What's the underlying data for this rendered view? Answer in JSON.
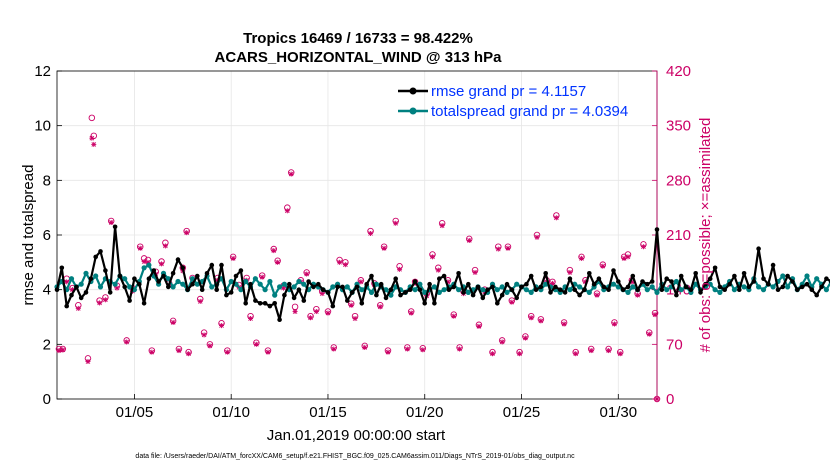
{
  "chart_data": {
    "type": "line",
    "title": [
      "Tropics 16469 / 16733 = 98.422%",
      "ACARS_HORIZONTAL_WIND @ 313 hPa"
    ],
    "xlabel": "Jan.01,2019 00:00:00 start",
    "ylabel": "rmse and totalspread",
    "ylabel_right": "# of obs: o=possible; ×=assimilated",
    "xlim": [
      1,
      32
    ],
    "ylim": [
      0,
      12
    ],
    "ylim_right": [
      0,
      420
    ],
    "x_ticks": [
      5,
      10,
      15,
      20,
      25,
      30
    ],
    "x_tick_labels": [
      "01/05",
      "01/10",
      "01/15",
      "01/20",
      "01/25",
      "01/30"
    ],
    "y_ticks": [
      "0",
      "2",
      "4",
      "6",
      "8",
      "10",
      "12"
    ],
    "y_right_ticks": [
      "0",
      "70",
      "140",
      "210",
      "280",
      "350",
      "420"
    ],
    "legend": [
      "rmse grand pr = 4.1157",
      "totalspread grand pr = 4.0394"
    ],
    "footer": "data file: /Users/raeder/DAI/ATM_forcXX/CAM6_setup/f.e21.FHIST_BGC.f09_025.CAM6assim.011/Diags_NTrS_2019-01/obs_diag_output.nc",
    "colors": {
      "rmse": "#000000",
      "spread": "#008080",
      "obs": "#cc0066",
      "legend_text": "#0033ff"
    },
    "series": [
      {
        "name": "rmse",
        "x_start": 1.0,
        "x_step": 0.25,
        "values": [
          4.0,
          4.8,
          3.4,
          3.8,
          4.1,
          3.7,
          3.9,
          4.4,
          5.2,
          5.4,
          4.7,
          3.9,
          6.3,
          4.5,
          4.1,
          3.6,
          4.4,
          4.2,
          3.5,
          4.4,
          4.7,
          4.3,
          4.5,
          4.1,
          4.6,
          5.1,
          4.8,
          4.0,
          4.2,
          4.5,
          4.0,
          4.6,
          4.9,
          4.0,
          4.9,
          3.8,
          3.9,
          4.5,
          4.7,
          3.5,
          4.2,
          3.6,
          3.5,
          3.5,
          3.4,
          3.5,
          2.9,
          3.8,
          4.2,
          3.7,
          4.0,
          3.6,
          4.3,
          4.1,
          4.2,
          4.0,
          3.9,
          3.4,
          4.1,
          4.1,
          3.6,
          3.9,
          4.1,
          3.5,
          4.2,
          4.5,
          3.8,
          4.2,
          3.7,
          4.0,
          4.4,
          3.8,
          3.9,
          4.0,
          4.3,
          4.0,
          3.5,
          4.2,
          3.5,
          4.4,
          4.5,
          4.0,
          4.1,
          4.6,
          3.9,
          4.2,
          3.8,
          4.1,
          3.7,
          4.0,
          4.1,
          3.5,
          3.8,
          4.2,
          4.0,
          3.7,
          4.1,
          4.2,
          4.5,
          4.0,
          4.1,
          4.6,
          3.9,
          4.1,
          4.0,
          3.9,
          4.4,
          4.0,
          3.8,
          4.0,
          4.6,
          4.2,
          4.4,
          4.1,
          4.0,
          4.7,
          4.3,
          4.0,
          4.1,
          4.5,
          4.0,
          4.3,
          4.2,
          4.3,
          6.2,
          4.0,
          4.4,
          4.3,
          3.8,
          4.5,
          4.1,
          4.0,
          4.6,
          3.9,
          4.2,
          4.4,
          4.8,
          4.1,
          4.0,
          4.2,
          4.5,
          4.0,
          4.6,
          4.1,
          4.3,
          5.5,
          4.4,
          4.2,
          4.9,
          4.0,
          4.1,
          4.5,
          4.3,
          4.0,
          4.1,
          4.2,
          4.0,
          3.8,
          4.1,
          4.4,
          4.3,
          4.6,
          4.1,
          4.5,
          4.2,
          4.0,
          4.7,
          4.3,
          4.9,
          4.1,
          3.8,
          4.2,
          4.0,
          4.3,
          4.5,
          4.8,
          4.2,
          4.1,
          4.4,
          3.9,
          4.5,
          4.0,
          4.3,
          4.1,
          4.6,
          4.2,
          4.3,
          4.1,
          4.8,
          4.2,
          4.1,
          4.5,
          4.3,
          5.0,
          4.4,
          4.1,
          4.2,
          5.4,
          4.9,
          4.2,
          4.4,
          4.0,
          3.9,
          4.2,
          4.0,
          4.1
        ]
      },
      {
        "name": "totalspread",
        "x_start": 1.0,
        "x_step": 0.25,
        "values": [
          4.1,
          4.3,
          4.0,
          4.4,
          4.1,
          4.2,
          4.6,
          4.3,
          4.5,
          4.1,
          4.4,
          4.3,
          4.2,
          4.5,
          4.4,
          4.1,
          4.0,
          4.3,
          4.8,
          4.9,
          4.5,
          4.2,
          4.6,
          4.4,
          4.1,
          4.3,
          4.2,
          4.0,
          4.4,
          4.2,
          4.3,
          4.5,
          4.1,
          4.2,
          4.4,
          4.0,
          4.3,
          4.2,
          4.0,
          4.3,
          4.1,
          4.4,
          4.2,
          4.0,
          4.3,
          3.8,
          4.1,
          4.2,
          4.0,
          4.1,
          4.3,
          4.2,
          4.0,
          4.2,
          4.1,
          4.0,
          3.9,
          4.1,
          4.2,
          4.0,
          4.1,
          3.9,
          4.2,
          4.0,
          4.1,
          3.9,
          4.2,
          4.1,
          4.0,
          3.8,
          4.1,
          4.0,
          3.9,
          4.1,
          4.0,
          4.2,
          3.9,
          4.0,
          4.1,
          3.9,
          4.0,
          4.1,
          4.2,
          4.0,
          4.1,
          3.9,
          4.0,
          4.1,
          4.0,
          3.9,
          4.2,
          4.0,
          4.1,
          3.9,
          4.0,
          4.2,
          4.1,
          4.0,
          3.9,
          4.1,
          4.0,
          4.2,
          4.1,
          4.0,
          3.9,
          4.1,
          4.0,
          4.2,
          4.1,
          4.0,
          3.9,
          4.1,
          4.3,
          4.0,
          4.1,
          4.2,
          4.1,
          4.0,
          3.9,
          4.1,
          4.0,
          4.2,
          4.0,
          4.1,
          3.9,
          4.2,
          4.0,
          4.1,
          4.3,
          4.0,
          4.1,
          3.9,
          4.2,
          4.0,
          4.1,
          4.2,
          4.0,
          3.9,
          4.1,
          4.3,
          4.0,
          4.2,
          4.1,
          4.0,
          4.4,
          4.1,
          4.0,
          4.2,
          4.1,
          4.3,
          4.5,
          4.1,
          4.4,
          4.0,
          4.2,
          4.5,
          4.1,
          4.4,
          4.2,
          4.0,
          4.3,
          4.5,
          4.6,
          4.2,
          4.4,
          4.1,
          4.3,
          4.0,
          4.2,
          4.4,
          4.1,
          4.3,
          4.5,
          4.2,
          4.6,
          4.4,
          4.2,
          4.3,
          4.1,
          4.4,
          4.3,
          4.2,
          4.5,
          4.2,
          4.1,
          4.3,
          4.4,
          4.2,
          4.5,
          4.1,
          4.3,
          4.2,
          4.4,
          4.1,
          4.5,
          4.3,
          4.7,
          4.4,
          4.2,
          4.6,
          4.9,
          4.5,
          4.3
        ]
      }
    ],
    "obs_possible": [
      [
        1.1,
        64
      ],
      [
        1.3,
        64
      ],
      [
        1.5,
        154
      ],
      [
        1.8,
        142
      ],
      [
        2.1,
        120
      ],
      [
        2.6,
        52
      ],
      [
        2.8,
        360
      ],
      [
        2.9,
        337
      ],
      [
        3.2,
        126
      ],
      [
        3.5,
        130
      ],
      [
        3.8,
        228
      ],
      [
        4.1,
        145
      ],
      [
        4.6,
        75
      ],
      [
        4.9,
        142
      ],
      [
        5.3,
        195
      ],
      [
        5.5,
        180
      ],
      [
        5.7,
        178
      ],
      [
        5.9,
        62
      ],
      [
        6.1,
        163
      ],
      [
        6.4,
        176
      ],
      [
        6.6,
        200
      ],
      [
        6.8,
        148
      ],
      [
        7.0,
        100
      ],
      [
        7.3,
        64
      ],
      [
        7.5,
        168
      ],
      [
        7.7,
        215
      ],
      [
        7.8,
        60
      ],
      [
        8.0,
        155
      ],
      [
        8.4,
        128
      ],
      [
        8.6,
        85
      ],
      [
        8.9,
        70
      ],
      [
        9.3,
        155
      ],
      [
        9.5,
        97
      ],
      [
        9.8,
        62
      ],
      [
        10.1,
        182
      ],
      [
        10.4,
        146
      ],
      [
        10.8,
        155
      ],
      [
        11.0,
        106
      ],
      [
        11.3,
        72
      ],
      [
        11.6,
        158
      ],
      [
        11.9,
        62
      ],
      [
        12.2,
        192
      ],
      [
        12.4,
        177
      ],
      [
        12.7,
        145
      ],
      [
        12.9,
        245
      ],
      [
        13.1,
        290
      ],
      [
        13.3,
        118
      ],
      [
        13.6,
        152
      ],
      [
        13.9,
        162
      ],
      [
        14.1,
        106
      ],
      [
        14.4,
        115
      ],
      [
        14.7,
        138
      ],
      [
        15.0,
        112
      ],
      [
        15.3,
        66
      ],
      [
        15.6,
        178
      ],
      [
        15.9,
        175
      ],
      [
        16.2,
        122
      ],
      [
        16.4,
        106
      ],
      [
        16.7,
        152
      ],
      [
        16.9,
        68
      ],
      [
        17.2,
        215
      ],
      [
        17.4,
        148
      ],
      [
        17.7,
        120
      ],
      [
        17.9,
        195
      ],
      [
        18.1,
        62
      ],
      [
        18.5,
        228
      ],
      [
        18.7,
        170
      ],
      [
        19.1,
        66
      ],
      [
        19.3,
        112
      ],
      [
        19.5,
        150
      ],
      [
        19.9,
        65
      ],
      [
        20.1,
        135
      ],
      [
        20.4,
        185
      ],
      [
        20.7,
        168
      ],
      [
        20.9,
        225
      ],
      [
        21.2,
        152
      ],
      [
        21.5,
        108
      ],
      [
        21.8,
        66
      ],
      [
        22.0,
        138
      ],
      [
        22.3,
        205
      ],
      [
        22.6,
        165
      ],
      [
        22.8,
        95
      ],
      [
        23.1,
        140
      ],
      [
        23.5,
        60
      ],
      [
        23.8,
        195
      ],
      [
        24.0,
        75
      ],
      [
        24.3,
        195
      ],
      [
        24.5,
        126
      ],
      [
        24.9,
        60
      ],
      [
        25.2,
        80
      ],
      [
        25.5,
        106
      ],
      [
        25.8,
        210
      ],
      [
        26.0,
        102
      ],
      [
        26.3,
        152
      ],
      [
        26.6,
        150
      ],
      [
        26.8,
        235
      ],
      [
        27.2,
        98
      ],
      [
        27.5,
        165
      ],
      [
        27.8,
        60
      ],
      [
        28.1,
        182
      ],
      [
        28.3,
        152
      ],
      [
        28.6,
        64
      ],
      [
        28.9,
        135
      ],
      [
        29.2,
        172
      ],
      [
        29.5,
        64
      ],
      [
        29.8,
        98
      ],
      [
        30.1,
        60
      ],
      [
        30.3,
        182
      ],
      [
        30.5,
        185
      ],
      [
        30.7,
        152
      ],
      [
        31.0,
        135
      ],
      [
        31.3,
        198
      ],
      [
        31.6,
        85
      ],
      [
        31.9,
        110
      ],
      [
        32.0,
        0
      ]
    ],
    "obs_assimilated": [
      [
        1.1,
        62
      ],
      [
        1.3,
        63
      ],
      [
        1.5,
        150
      ],
      [
        1.8,
        140
      ],
      [
        2.1,
        116
      ],
      [
        2.6,
        48
      ],
      [
        2.8,
        334
      ],
      [
        2.9,
        326
      ],
      [
        3.2,
        123
      ],
      [
        3.5,
        127
      ],
      [
        3.8,
        226
      ],
      [
        4.1,
        142
      ],
      [
        4.6,
        73
      ],
      [
        4.9,
        138
      ],
      [
        5.3,
        193
      ],
      [
        5.5,
        176
      ],
      [
        5.7,
        175
      ],
      [
        5.9,
        60
      ],
      [
        6.1,
        160
      ],
      [
        6.4,
        173
      ],
      [
        6.6,
        196
      ],
      [
        6.8,
        146
      ],
      [
        7.0,
        98
      ],
      [
        7.3,
        62
      ],
      [
        7.5,
        164
      ],
      [
        7.7,
        213
      ],
      [
        7.8,
        58
      ],
      [
        8.0,
        152
      ],
      [
        8.4,
        125
      ],
      [
        8.6,
        82
      ],
      [
        8.9,
        68
      ],
      [
        9.3,
        152
      ],
      [
        9.5,
        94
      ],
      [
        9.8,
        60
      ],
      [
        10.1,
        180
      ],
      [
        10.4,
        143
      ],
      [
        10.8,
        152
      ],
      [
        11.0,
        103
      ],
      [
        11.3,
        70
      ],
      [
        11.6,
        156
      ],
      [
        11.9,
        60
      ],
      [
        12.2,
        190
      ],
      [
        12.4,
        175
      ],
      [
        12.7,
        142
      ],
      [
        12.9,
        241
      ],
      [
        13.1,
        288
      ],
      [
        13.3,
        112
      ],
      [
        13.6,
        150
      ],
      [
        13.9,
        160
      ],
      [
        14.1,
        104
      ],
      [
        14.4,
        112
      ],
      [
        14.7,
        135
      ],
      [
        15.0,
        110
      ],
      [
        15.3,
        64
      ],
      [
        15.6,
        175
      ],
      [
        15.9,
        172
      ],
      [
        16.2,
        120
      ],
      [
        16.4,
        103
      ],
      [
        16.7,
        150
      ],
      [
        16.9,
        66
      ],
      [
        17.2,
        212
      ],
      [
        17.4,
        146
      ],
      [
        17.7,
        118
      ],
      [
        17.9,
        193
      ],
      [
        18.1,
        60
      ],
      [
        18.5,
        225
      ],
      [
        18.7,
        166
      ],
      [
        19.1,
        64
      ],
      [
        19.3,
        110
      ],
      [
        19.5,
        148
      ],
      [
        19.9,
        63
      ],
      [
        20.1,
        132
      ],
      [
        20.4,
        182
      ],
      [
        20.7,
        165
      ],
      [
        20.9,
        222
      ],
      [
        21.2,
        150
      ],
      [
        21.5,
        106
      ],
      [
        21.8,
        64
      ],
      [
        22.0,
        135
      ],
      [
        22.3,
        203
      ],
      [
        22.6,
        162
      ],
      [
        22.8,
        93
      ],
      [
        23.1,
        137
      ],
      [
        23.5,
        58
      ],
      [
        23.8,
        192
      ],
      [
        24.0,
        73
      ],
      [
        24.3,
        193
      ],
      [
        24.5,
        124
      ],
      [
        24.9,
        58
      ],
      [
        25.2,
        78
      ],
      [
        25.5,
        104
      ],
      [
        25.8,
        207
      ],
      [
        26.0,
        100
      ],
      [
        26.3,
        150
      ],
      [
        26.6,
        148
      ],
      [
        26.8,
        232
      ],
      [
        27.2,
        96
      ],
      [
        27.5,
        162
      ],
      [
        27.8,
        58
      ],
      [
        28.1,
        180
      ],
      [
        28.3,
        150
      ],
      [
        28.6,
        62
      ],
      [
        28.9,
        133
      ],
      [
        29.2,
        170
      ],
      [
        29.5,
        62
      ],
      [
        29.8,
        96
      ],
      [
        30.1,
        58
      ],
      [
        30.3,
        180
      ],
      [
        30.5,
        182
      ],
      [
        30.7,
        150
      ],
      [
        31.0,
        133
      ],
      [
        31.3,
        195
      ],
      [
        31.6,
        83
      ],
      [
        31.9,
        108
      ],
      [
        32.0,
        0
      ]
    ]
  }
}
